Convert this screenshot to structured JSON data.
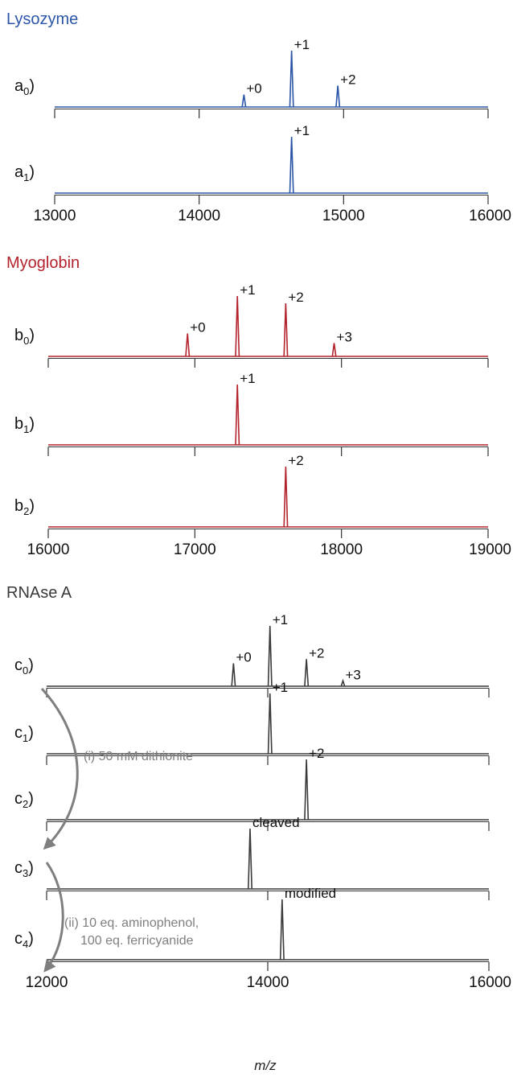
{
  "chart_data": [
    {
      "type": "line",
      "title": "Lysozyme",
      "xlabel": "",
      "xlim": [
        13000,
        16000
      ],
      "xticks": [
        "13000",
        "14000",
        "15000",
        "16000"
      ],
      "color": "#2b56a8",
      "traces": [
        {
          "label": "a",
          "sub": "0",
          "peaks": [
            {
              "x": 14310,
              "y": 0.22,
              "label": "+0"
            },
            {
              "x": 14640,
              "y": 1.0,
              "label": "+1"
            },
            {
              "x": 14960,
              "y": 0.38,
              "label": "+2"
            }
          ]
        },
        {
          "label": "a",
          "sub": "1",
          "peaks": [
            {
              "x": 14640,
              "y": 1.0,
              "label": "+1"
            }
          ]
        }
      ]
    },
    {
      "type": "line",
      "title": "Myoglobin",
      "xlabel": "",
      "xlim": [
        16000,
        19000
      ],
      "xticks": [
        "16000",
        "17000",
        "18000",
        "19000"
      ],
      "color": "#b3232c",
      "traces": [
        {
          "label": "b",
          "sub": "0",
          "peaks": [
            {
              "x": 16950,
              "y": 0.38,
              "label": "+0"
            },
            {
              "x": 17290,
              "y": 1.0,
              "label": "+1"
            },
            {
              "x": 17620,
              "y": 0.88,
              "label": "+2"
            },
            {
              "x": 17950,
              "y": 0.22,
              "label": "+3"
            }
          ]
        },
        {
          "label": "b",
          "sub": "1",
          "peaks": [
            {
              "x": 17290,
              "y": 1.0,
              "label": "+1"
            }
          ]
        },
        {
          "label": "b",
          "sub": "2",
          "peaks": [
            {
              "x": 17620,
              "y": 1.0,
              "label": "+2"
            }
          ]
        }
      ]
    },
    {
      "type": "line",
      "title": "RNAse A",
      "xlabel": "m/z",
      "xlim": [
        12000,
        16000
      ],
      "xticks": [
        "12000",
        "14000",
        "16000"
      ],
      "color": "#3a3a3a",
      "traces": [
        {
          "label": "c",
          "sub": "0",
          "peaks": [
            {
              "x": 13690,
              "y": 0.38,
              "label": "+0"
            },
            {
              "x": 14020,
              "y": 1.0,
              "label": "+1"
            },
            {
              "x": 14350,
              "y": 0.45,
              "label": "+2"
            },
            {
              "x": 14680,
              "y": 0.09,
              "label": "+3"
            }
          ]
        },
        {
          "label": "c",
          "sub": "1",
          "peaks": [
            {
              "x": 14020,
              "y": 1.0,
              "label": "+1"
            }
          ]
        },
        {
          "label": "c",
          "sub": "2",
          "peaks": [
            {
              "x": 14350,
              "y": 1.0,
              "label": "+2"
            }
          ]
        },
        {
          "label": "c",
          "sub": "3",
          "peaks": [
            {
              "x": 13840,
              "y": 1.0,
              "label": "cleaved"
            }
          ]
        },
        {
          "label": "c",
          "sub": "4",
          "peaks": [
            {
              "x": 14130,
              "y": 1.0,
              "label": "modified"
            }
          ]
        }
      ],
      "annotations": [
        "(i) 50 mM dithionite",
        "(ii) 10 eq. aminophenol,",
        "100 eq. ferricyanide"
      ]
    }
  ]
}
